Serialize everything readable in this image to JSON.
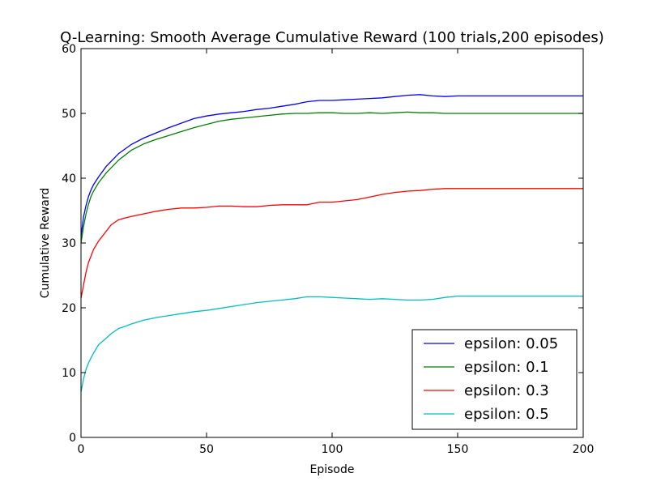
{
  "chart_data": {
    "type": "line",
    "title": "Q-Learning: Smooth Average Cumulative Reward (100 trials,200 episodes)",
    "xlabel": "Episode",
    "ylabel": "Cumulative Reward",
    "xlim": [
      0,
      200
    ],
    "ylim": [
      0,
      60
    ],
    "xticks": [
      0,
      50,
      100,
      150,
      200
    ],
    "yticks": [
      0,
      10,
      20,
      30,
      40,
      50,
      60
    ],
    "grid": false,
    "legend_position": "lower-right",
    "series": [
      {
        "name": "epsilon: 0.05",
        "color": "#0000ff",
        "x": [
          0,
          1,
          2,
          3,
          4,
          5,
          7,
          10,
          15,
          20,
          25,
          30,
          35,
          40,
          45,
          50,
          55,
          60,
          65,
          70,
          75,
          80,
          85,
          90,
          95,
          100,
          105,
          110,
          115,
          120,
          125,
          130,
          135,
          140,
          145,
          150,
          160,
          170,
          180,
          190,
          200
        ],
        "y": [
          31.0,
          34.0,
          35.8,
          37.2,
          38.2,
          39.0,
          40.2,
          41.8,
          43.8,
          45.2,
          46.2,
          47.0,
          47.8,
          48.5,
          49.2,
          49.6,
          49.9,
          50.1,
          50.3,
          50.6,
          50.8,
          51.1,
          51.4,
          51.8,
          52.0,
          52.0,
          52.1,
          52.2,
          52.3,
          52.4,
          52.6,
          52.8,
          52.9,
          52.7,
          52.6,
          52.7,
          52.7,
          52.7,
          52.7,
          52.7,
          52.7
        ]
      },
      {
        "name": "epsilon: 0.1",
        "color": "#008000",
        "x": [
          0,
          1,
          2,
          3,
          4,
          5,
          7,
          10,
          15,
          20,
          25,
          30,
          35,
          40,
          45,
          50,
          55,
          60,
          65,
          70,
          75,
          80,
          85,
          90,
          95,
          100,
          105,
          110,
          115,
          120,
          125,
          130,
          135,
          140,
          145,
          150,
          160,
          170,
          180,
          190,
          200
        ],
        "y": [
          30.0,
          32.5,
          34.5,
          36.0,
          37.2,
          38.0,
          39.3,
          40.8,
          42.8,
          44.3,
          45.3,
          46.0,
          46.6,
          47.2,
          47.8,
          48.3,
          48.8,
          49.1,
          49.3,
          49.5,
          49.7,
          49.9,
          50.0,
          50.0,
          50.1,
          50.1,
          50.0,
          50.0,
          50.1,
          50.0,
          50.1,
          50.2,
          50.1,
          50.1,
          50.0,
          50.0,
          50.0,
          50.0,
          50.0,
          50.0,
          50.0
        ]
      },
      {
        "name": "epsilon: 0.3",
        "color": "#ff0000",
        "x": [
          0,
          1,
          2,
          3,
          4,
          5,
          7,
          10,
          12,
          15,
          18,
          20,
          25,
          30,
          35,
          40,
          45,
          50,
          55,
          60,
          65,
          70,
          75,
          80,
          85,
          90,
          95,
          100,
          105,
          110,
          115,
          120,
          125,
          130,
          135,
          140,
          145,
          150,
          160,
          170,
          180,
          190,
          200
        ],
        "y": [
          21.5,
          23.5,
          25.5,
          27.0,
          28.0,
          29.0,
          30.3,
          31.8,
          32.8,
          33.6,
          33.9,
          34.1,
          34.5,
          34.9,
          35.2,
          35.4,
          35.4,
          35.5,
          35.7,
          35.7,
          35.6,
          35.6,
          35.8,
          35.9,
          35.9,
          35.9,
          36.3,
          36.3,
          36.5,
          36.7,
          37.1,
          37.5,
          37.8,
          38.0,
          38.1,
          38.3,
          38.4,
          38.4,
          38.4,
          38.4,
          38.4,
          38.4,
          38.4
        ]
      },
      {
        "name": "epsilon: 0.5",
        "color": "#00bfbf",
        "x": [
          0,
          1,
          2,
          3,
          4,
          5,
          7,
          10,
          12,
          15,
          18,
          20,
          25,
          30,
          35,
          40,
          45,
          50,
          55,
          60,
          65,
          70,
          75,
          80,
          85,
          90,
          95,
          100,
          105,
          110,
          115,
          120,
          125,
          130,
          135,
          140,
          145,
          150,
          160,
          170,
          180,
          190,
          200
        ],
        "y": [
          7.0,
          9.0,
          10.5,
          11.5,
          12.3,
          13.0,
          14.3,
          15.3,
          16.0,
          16.8,
          17.2,
          17.5,
          18.1,
          18.5,
          18.8,
          19.1,
          19.4,
          19.6,
          19.9,
          20.2,
          20.5,
          20.8,
          21.0,
          21.2,
          21.4,
          21.7,
          21.7,
          21.6,
          21.5,
          21.4,
          21.3,
          21.4,
          21.3,
          21.2,
          21.2,
          21.3,
          21.6,
          21.8,
          21.8,
          21.8,
          21.8,
          21.8,
          21.8
        ]
      }
    ]
  }
}
